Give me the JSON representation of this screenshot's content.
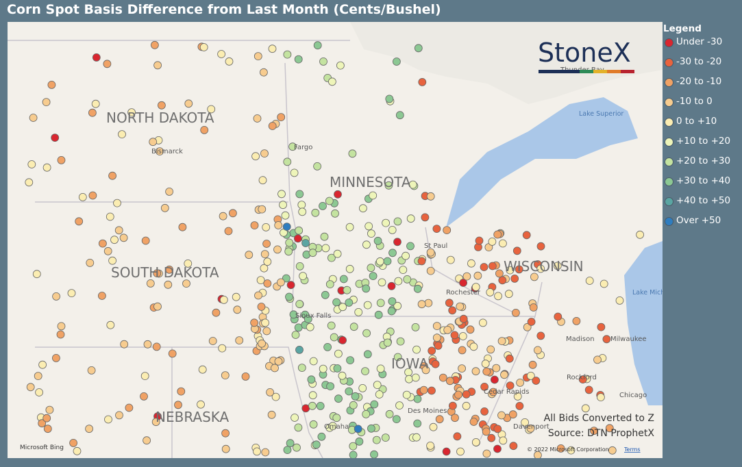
{
  "header": {
    "title": "Corn Spot Basis Difference from Last Month (Cents/Bushel)"
  },
  "legend": {
    "title": "Legend",
    "items": [
      {
        "label": "Under -30",
        "color": "#d9262f"
      },
      {
        "label": "-30 to -20",
        "color": "#e8633e"
      },
      {
        "label": "-20 to -10",
        "color": "#f0a265"
      },
      {
        "label": "-10 to 0",
        "color": "#f7cc8f"
      },
      {
        "label": "0 to +10",
        "color": "#fbedb2"
      },
      {
        "label": "+10 to +20",
        "color": "#eef5b9"
      },
      {
        "label": "+20 to +30",
        "color": "#c4e3a0"
      },
      {
        "label": "+30 to +40",
        "color": "#8cc893"
      },
      {
        "label": "+40 to +50",
        "color": "#5aa5a2"
      },
      {
        "label": "Over +50",
        "color": "#2f7dbf"
      }
    ]
  },
  "map": {
    "logo": "StoneX",
    "states": [
      "NORTH DAKOTA",
      "SOUTH DAKOTA",
      "NEBRASKA",
      "MINNESOTA",
      "WISCONSIN",
      "IOWA"
    ],
    "cities": [
      "Bismarck",
      "Fargo",
      "St Paul",
      "Rochester",
      "Sioux Falls",
      "Madison",
      "Milwaukee",
      "Rockford",
      "Chicago",
      "Cedar Rapids",
      "Des Moines",
      "Omaha",
      "Davenport",
      "Thunder Bay"
    ],
    "water": [
      "Lake Superior",
      "Lake Michigan"
    ],
    "notes": [
      "All Bids Converted to Z",
      "Source: DTN ProphetX"
    ],
    "attribution": [
      "Microsoft Bing",
      "© 2022 Microsoft Corporation",
      "Terms"
    ]
  }
}
